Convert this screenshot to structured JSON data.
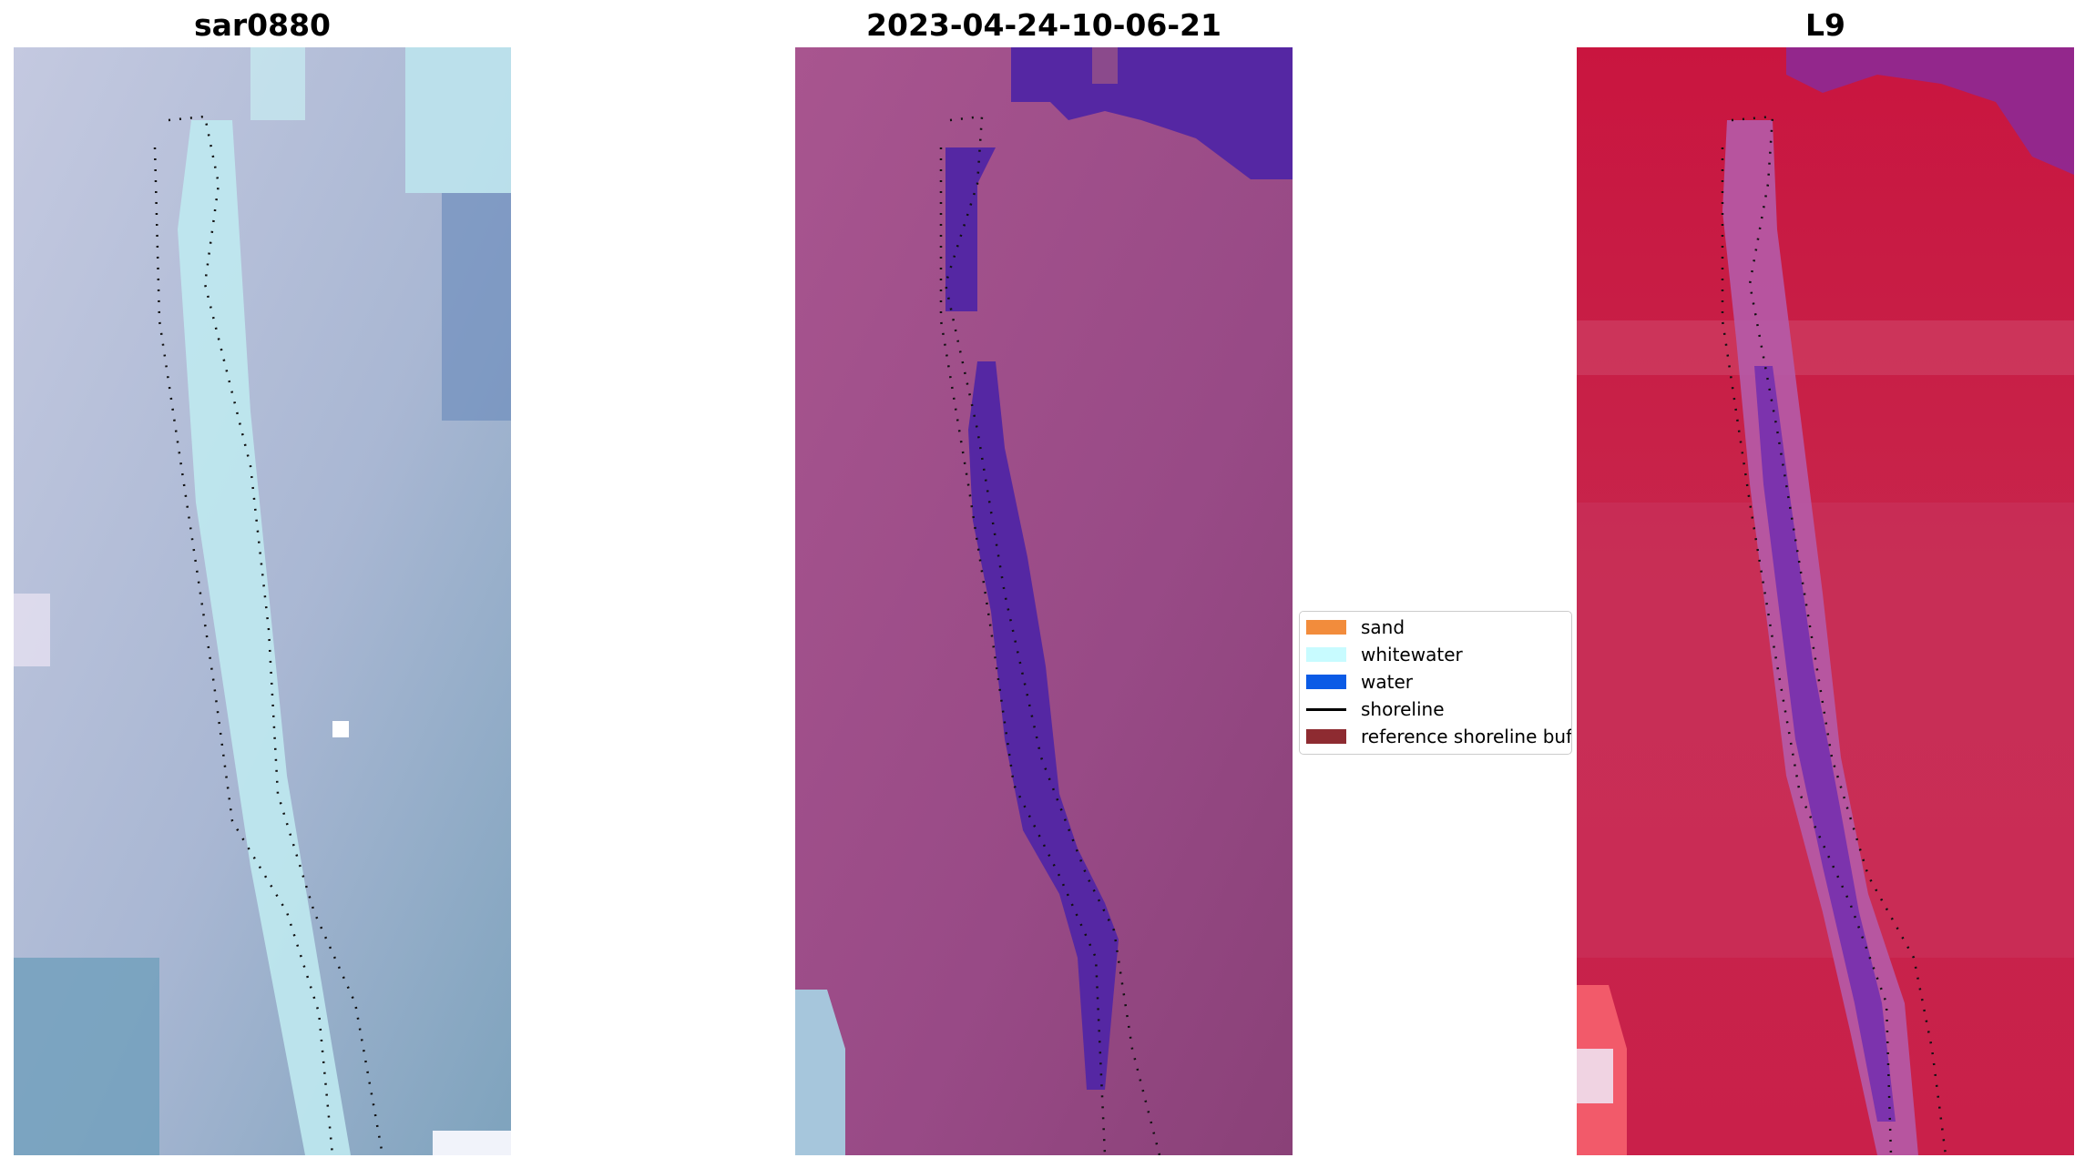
{
  "panels": [
    {
      "title": "sar0880",
      "image": "rgb-satellite-image"
    },
    {
      "title": "2023-04-24-10-06-21",
      "image": "classified-image"
    },
    {
      "title": "L9",
      "image": "false-color-image"
    }
  ],
  "legend": {
    "items": [
      {
        "label": "sand",
        "color": "#f28c3c",
        "kind": "patch"
      },
      {
        "label": "whitewater",
        "color": "#c8fbff",
        "kind": "patch"
      },
      {
        "label": "water",
        "color": "#0b5be6",
        "kind": "patch"
      },
      {
        "label": "shoreline",
        "color": "#000000",
        "kind": "line"
      },
      {
        "label": "reference shoreline buffer",
        "color": "#8e2b31",
        "kind": "patch"
      }
    ]
  },
  "colors": {
    "panel1_base": "#aebbd6",
    "panel2_base": "#9c4d88",
    "panel3_base": "#cc1a4a",
    "classified_water": "#5527a3"
  }
}
